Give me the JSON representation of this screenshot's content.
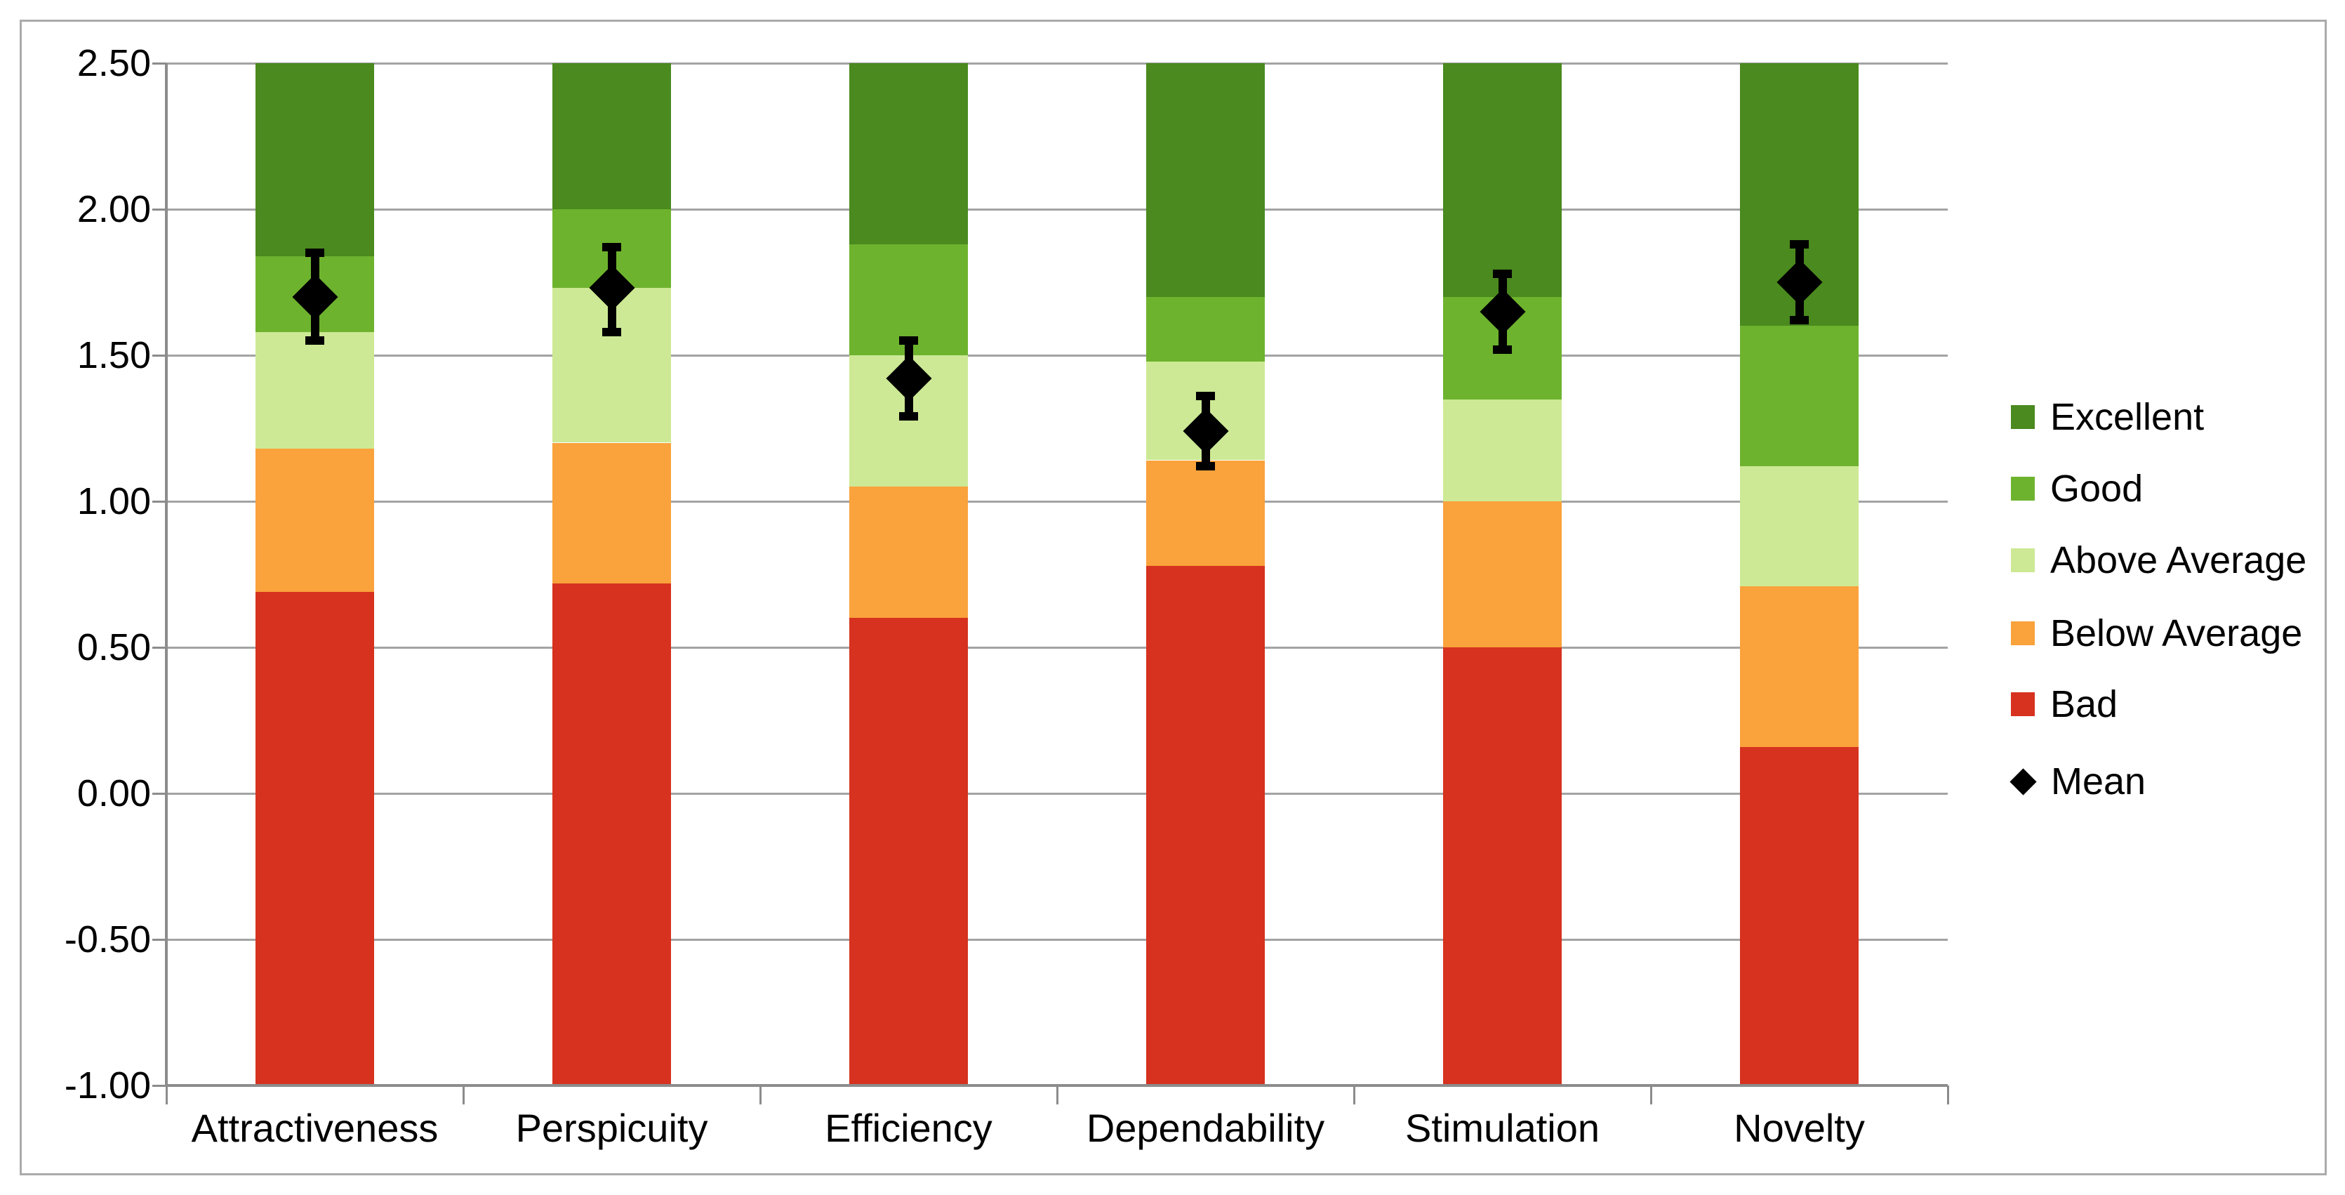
{
  "chart_data": {
    "type": "bar",
    "stacked": true,
    "title": "",
    "description": "UEQ benchmark chart: stacked category bands per scale with mean markers and error bars",
    "categories": [
      "Attractiveness",
      "Perspicuity",
      "Efficiency",
      "Dependability",
      "Stimulation",
      "Novelty"
    ],
    "ylim": [
      -1.0,
      2.5
    ],
    "y_ticks": [
      "2.50",
      "2.00",
      "1.50",
      "1.00",
      "0.50",
      "0.00",
      "-0.50",
      "-1.00"
    ],
    "y_tick_values": [
      2.5,
      2.0,
      1.5,
      1.0,
      0.5,
      0.0,
      -0.5,
      -1.0
    ],
    "grid": "horizontal",
    "legend_position": "right",
    "base": -1.0,
    "bands": [
      {
        "name": "Bad",
        "color": "#d6321f",
        "tops": [
          0.69,
          0.72,
          0.6,
          0.78,
          0.5,
          0.16
        ]
      },
      {
        "name": "Below Average",
        "color": "#faa23c",
        "tops": [
          1.18,
          1.2,
          1.05,
          1.14,
          1.0,
          0.71
        ]
      },
      {
        "name": "Above Average",
        "color": "#cde995",
        "tops": [
          1.58,
          1.73,
          1.5,
          1.48,
          1.35,
          1.12
        ]
      },
      {
        "name": "Good",
        "color": "#6eb32e",
        "tops": [
          1.84,
          2.0,
          1.88,
          1.7,
          1.7,
          1.6
        ]
      },
      {
        "name": "Excellent",
        "color": "#4a8a1e",
        "tops": [
          2.5,
          2.5,
          2.5,
          2.5,
          2.5,
          2.5
        ]
      }
    ],
    "mean_series": {
      "name": "Mean",
      "color": "#000000",
      "values": [
        1.7,
        1.73,
        1.42,
        1.24,
        1.65,
        1.75
      ],
      "error_low": [
        1.55,
        1.58,
        1.29,
        1.12,
        1.52,
        1.62
      ],
      "error_high": [
        1.85,
        1.87,
        1.55,
        1.36,
        1.78,
        1.88
      ]
    }
  },
  "legend": {
    "items": [
      {
        "label": "Excellent",
        "marker": "square",
        "color": "#4a8a1e"
      },
      {
        "label": "Good",
        "marker": "square",
        "color": "#6eb32e"
      },
      {
        "label": "Above Average",
        "marker": "square",
        "color": "#cde995"
      },
      {
        "label": "Below Average",
        "marker": "square",
        "color": "#faa23c"
      },
      {
        "label": "Bad",
        "marker": "square",
        "color": "#d6321f"
      },
      {
        "label": "Mean",
        "marker": "diamond",
        "color": "#000000"
      }
    ]
  }
}
